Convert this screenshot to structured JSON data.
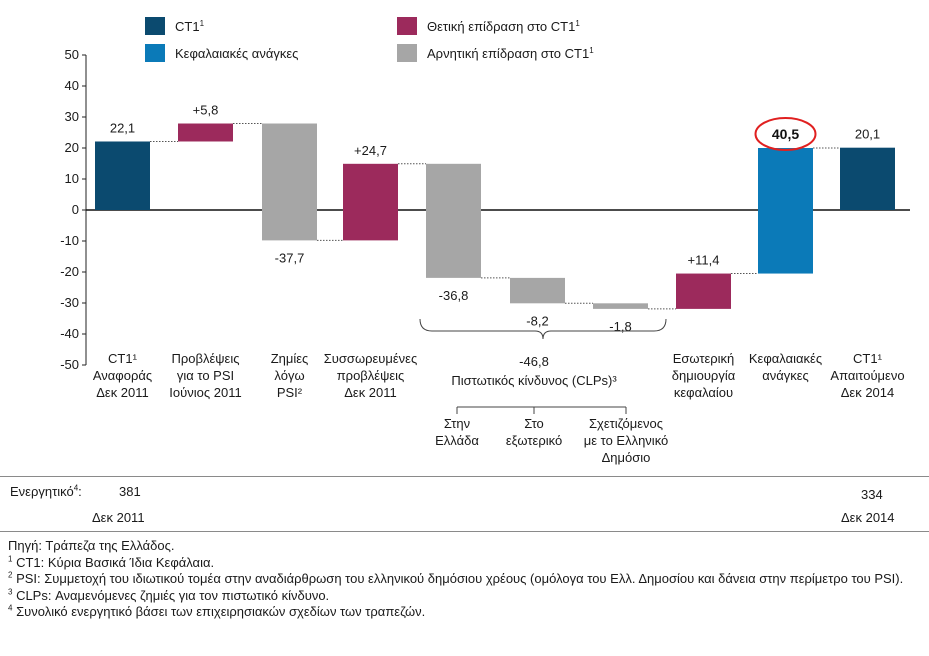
{
  "colors": {
    "ct1": "#0b4a6f",
    "positive": "#9c2a5c",
    "negative": "#a6a6a6",
    "capital_needs": "#0b7ab8",
    "highlight_circle": "#e02020"
  },
  "chart_data": {
    "type": "waterfall",
    "title": "",
    "xlabel": "",
    "ylabel": "",
    "ylim": [
      -50,
      50
    ],
    "yticks": [
      50,
      40,
      30,
      20,
      10,
      0,
      -10,
      -20,
      -30,
      -40,
      -50
    ],
    "legend": {
      "placement": "top",
      "items": [
        {
          "key": "ct1",
          "label": "CT1",
          "sup": "1"
        },
        {
          "key": "positive",
          "label": "Θετική επίδραση στο CT1",
          "sup": "1"
        },
        {
          "key": "capital_needs",
          "label": "Κεφαλαιακές ανάγκες",
          "sup": ""
        },
        {
          "key": "negative",
          "label": "Αρνητική επίδραση στο CT1",
          "sup": "1"
        }
      ]
    },
    "bars": [
      {
        "kind": "ct1",
        "start": 0,
        "end": 22.1,
        "value_label": "22,1",
        "label_pos": "top",
        "category": [
          "CT1¹",
          "Αναφοράς",
          "Δεκ 2011"
        ]
      },
      {
        "kind": "positive",
        "start": 22.1,
        "end": 27.9,
        "value_label": "+5,8",
        "label_pos": "top",
        "category": [
          "Προβλέψεις",
          "για το PSI",
          "Ιούνιος 2011"
        ]
      },
      {
        "kind": "negative",
        "start": 27.9,
        "end": -9.8,
        "value_label": "-37,7",
        "label_pos": "bottom",
        "category": [
          "Ζημίες",
          "λόγω",
          "PSI²"
        ]
      },
      {
        "kind": "positive",
        "start": -9.8,
        "end": 14.9,
        "value_label": "+24,7",
        "label_pos": "top",
        "category": [
          "Συσσωρευμένες",
          "προβλέψεις",
          "Δεκ 2011"
        ]
      },
      {
        "kind": "negative",
        "start": 14.9,
        "end": -21.9,
        "value_label": "-36,8",
        "label_pos": "bottom",
        "category": []
      },
      {
        "kind": "negative",
        "start": -21.9,
        "end": -30.1,
        "value_label": "-8,2",
        "label_pos": "bottom",
        "category": []
      },
      {
        "kind": "negative",
        "start": -30.1,
        "end": -31.9,
        "value_label": "-1,8",
        "label_pos": "bottom",
        "category": []
      },
      {
        "kind": "positive",
        "start": -31.9,
        "end": -20.5,
        "value_label": "+11,4",
        "label_pos": "top",
        "category": [
          "Εσωτερική",
          "δημιουργία",
          "κεφαλαίου"
        ]
      },
      {
        "kind": "capital_needs",
        "start": -20.5,
        "end": 20.0,
        "value_label": "40,5",
        "label_pos": "top",
        "circled": true,
        "category": [
          "Κεφαλαιακές",
          "ανάγκες"
        ]
      },
      {
        "kind": "ct1",
        "start": 0,
        "end": 20.1,
        "value_label": "20,1",
        "label_pos": "top",
        "category": [
          "CT1¹",
          "Απαιτούμενο",
          "Δεκ 2014"
        ]
      }
    ],
    "group": {
      "total": "-46,8",
      "label": "Πιστωτικός κίνδυνος (CLPs)³",
      "sub_categories": [
        [
          "Στην",
          "Ελλάδα"
        ],
        [
          "Στο",
          "εξωτερικό"
        ],
        [
          "Σχετιζόμενος",
          "με το Ελληνικό",
          "Δημόσιο"
        ]
      ]
    }
  },
  "footer": {
    "assets_label": "Ενεργητικό",
    "assets_sup": "4",
    "assets_start": "381",
    "date_start": "Δεκ 2011",
    "assets_end": "334",
    "date_end": "Δεκ 2014"
  },
  "notes": {
    "source": "Πηγή: Τράπεζα της Ελλάδος.",
    "n1_sup": "1",
    "n1": " CT1: Κύρια Βασικά Ίδια Κεφάλαια.",
    "n2_sup": "2",
    "n2": " PSI: Συμμετοχή του ιδιωτικού τομέα στην αναδιάρθρωση του ελληνικού δημόσιου χρέους (ομόλογα του Ελλ. Δημοσίου και δάνεια στην περίμετρο του PSI).",
    "n3_sup": "3",
    "n3": " CLPs: Αναμενόμενες ζημιές για τον πιστωτικό κίνδυνο.",
    "n4_sup": "4",
    "n4": " Συνολικό ενεργητικό βάσει των επιχειρησιακών σχεδίων των τραπεζών."
  }
}
